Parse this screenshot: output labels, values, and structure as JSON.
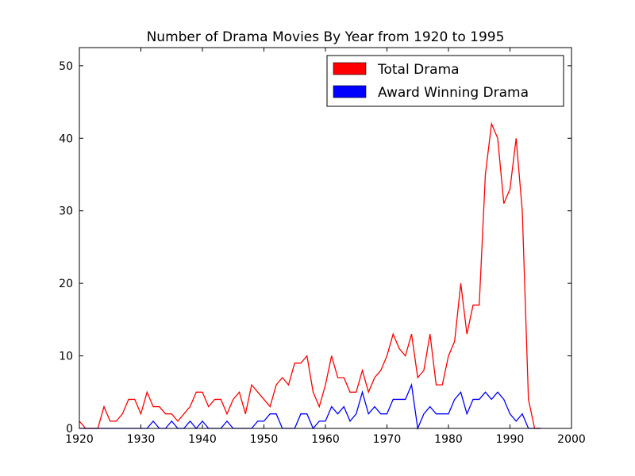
{
  "chart_data": {
    "type": "line",
    "title": "Number of Drama Movies By Year from 1920 to 1995",
    "xlabel": "",
    "ylabel": "",
    "xlim": [
      1920,
      2000
    ],
    "ylim": [
      0,
      52.5
    ],
    "xticks": [
      1920,
      1930,
      1940,
      1950,
      1960,
      1970,
      1980,
      1990,
      2000
    ],
    "yticks": [
      0,
      10,
      20,
      30,
      40,
      50
    ],
    "grid": false,
    "legend_position": "top-right",
    "x": [
      1920,
      1921,
      1922,
      1923,
      1924,
      1925,
      1926,
      1927,
      1928,
      1929,
      1930,
      1931,
      1932,
      1933,
      1934,
      1935,
      1936,
      1937,
      1938,
      1939,
      1940,
      1941,
      1942,
      1943,
      1944,
      1945,
      1946,
      1947,
      1948,
      1949,
      1950,
      1951,
      1952,
      1953,
      1954,
      1955,
      1956,
      1957,
      1958,
      1959,
      1960,
      1961,
      1962,
      1963,
      1964,
      1965,
      1966,
      1967,
      1968,
      1969,
      1970,
      1971,
      1972,
      1973,
      1974,
      1975,
      1976,
      1977,
      1978,
      1979,
      1980,
      1981,
      1982,
      1983,
      1984,
      1985,
      1986,
      1987,
      1988,
      1989,
      1990,
      1991,
      1992,
      1993,
      1994,
      1995
    ],
    "series": [
      {
        "name": "Total Drama",
        "color": "#ff0000",
        "values": [
          1,
          0,
          0,
          0,
          3,
          1,
          1,
          2,
          4,
          4,
          2,
          5,
          3,
          3,
          2,
          2,
          1,
          2,
          3,
          5,
          5,
          3,
          4,
          4,
          2,
          4,
          5,
          2,
          6,
          5,
          4,
          3,
          6,
          7,
          6,
          9,
          9,
          10,
          5,
          3,
          6,
          10,
          7,
          7,
          5,
          5,
          8,
          5,
          7,
          8,
          10,
          13,
          11,
          10,
          13,
          7,
          8,
          13,
          6,
          6,
          10,
          12,
          20,
          13,
          17,
          17,
          35,
          42,
          40,
          31,
          33,
          40,
          30,
          4,
          0,
          0
        ]
      },
      {
        "name": "Award Winning Drama",
        "color": "#0000ff",
        "values": [
          0,
          0,
          0,
          0,
          0,
          0,
          0,
          0,
          0,
          0,
          0,
          0,
          1,
          0,
          0,
          1,
          0,
          0,
          1,
          0,
          1,
          0,
          0,
          0,
          1,
          0,
          0,
          0,
          0,
          1,
          1,
          2,
          2,
          0,
          0,
          0,
          2,
          2,
          0,
          1,
          1,
          3,
          2,
          3,
          1,
          2,
          5,
          2,
          3,
          2,
          2,
          4,
          4,
          4,
          6,
          0,
          2,
          3,
          2,
          2,
          2,
          4,
          5,
          2,
          4,
          4,
          5,
          4,
          5,
          4,
          2,
          1,
          2,
          0,
          0,
          0
        ]
      }
    ]
  }
}
